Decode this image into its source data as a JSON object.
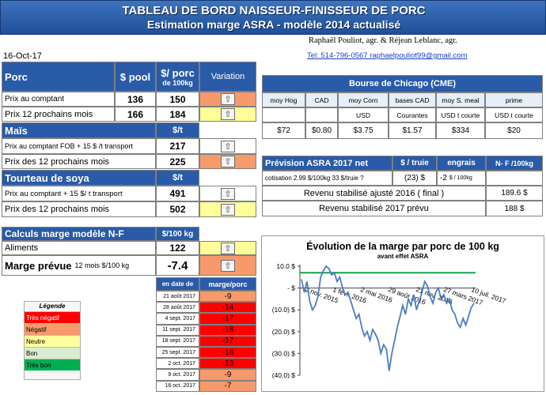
{
  "header": {
    "title_line1": "TABLEAU DE BORD NAISSEUR-FINISSEUR DE PORC",
    "title_line2": "Estimation marge ASRA - modèle 2014 actualisé"
  },
  "authors": "Raphaël Pouliot, agr.    &    Réjean Leblanc, agr.",
  "contact": "Tel:     514-796-0567   raphaelpouliot99@gmail.com",
  "date": "16-Oct-17",
  "porc": {
    "section": "Porc",
    "col_pool": "$ pool",
    "col_porc": "$/ porc",
    "col_porc_sub": "de 100kg",
    "col_variation": "Variation",
    "rows": [
      {
        "label": "Prix au comptant",
        "pool": "136",
        "porc": "150"
      },
      {
        "label": "Prix 12 prochains mois",
        "pool": "166",
        "porc": "184"
      }
    ]
  },
  "mais": {
    "section": "Maïs",
    "unit": "$/t",
    "rows": [
      {
        "label": "Prix au comptant FOB + 15 $ /t transport",
        "value": "217"
      },
      {
        "label": "Prix des 12 prochains mois",
        "value": "225"
      }
    ]
  },
  "soya": {
    "section": "Tourteau de soya",
    "unit": "$/t",
    "rows": [
      {
        "label": "Prix au comptant + 15 $/ t transport",
        "value": "491"
      },
      {
        "label": "Prix des 12 prochains mois",
        "value": "502"
      }
    ]
  },
  "marge": {
    "section": "Calculs marge  modèle N-F",
    "unit": "$/100 kg",
    "aliments_label": "Aliments",
    "aliments_value": "122",
    "prevue_label": "Marge prévue",
    "prevue_sub": "12 mois  $/100 kg",
    "prevue_value": "-7.4"
  },
  "history": {
    "col_date": "en date de",
    "col_marge": "marge/porc",
    "rows": [
      {
        "date": "21 août 2017",
        "value": "-9"
      },
      {
        "date": "28 août 2017",
        "value": "-14"
      },
      {
        "date": "4 sept. 2017",
        "value": "-17"
      },
      {
        "date": "11 sept. 2017",
        "value": "-18"
      },
      {
        "date": "18 sept. 2017",
        "value": "-17"
      },
      {
        "date": "25 sept. 2017",
        "value": "-18"
      },
      {
        "date": "2 oct. 2017",
        "value": "-13"
      },
      {
        "date": "9 oct. 2017",
        "value": "-9"
      },
      {
        "date": "16 oct. 2017",
        "value": "-7"
      }
    ]
  },
  "legend": {
    "title": "Légende",
    "items": [
      {
        "label": "Très négatif",
        "color": "#ff0000"
      },
      {
        "label": "Négatif",
        "color": "#f79a6b"
      },
      {
        "label": "Neutre",
        "color": "#ffff99"
      },
      {
        "label": "Bon",
        "color": "#d8ecd0"
      },
      {
        "label": "Très bon",
        "color": "#00b050"
      }
    ]
  },
  "cme": {
    "title": "Bourse de Chicago (CME)",
    "cols": [
      "moy Hog",
      "CAD",
      "moy Corn",
      "bases CAD",
      "moy S. meal",
      "prime"
    ],
    "units": [
      "",
      "",
      "USD",
      "Courantes",
      "USD t courte",
      "USD t courte"
    ],
    "values": [
      "$72",
      "$0.80",
      "$3.75",
      "$1.57",
      "$334",
      "$20"
    ]
  },
  "prevision": {
    "title": "Prévision ASRA 2017 net",
    "col_truie": "$ / truie",
    "col_engrais": "engrais",
    "col_nf": "N- F /100kg",
    "cotisation_label": "cotisation 2.99 $/100kg  33 $/truie ?",
    "truie_value": "(23) $",
    "engrais_value": "-2",
    "engrais_unit": "$ / 100kg",
    "revenu_2016_label": "Revenu stabilisé ajusté 2016 ( final )",
    "revenu_2016_value": "189.6 $",
    "revenu_2017_label": "Revenu stabilisé 2017 prévu",
    "revenu_2017_value": "188 $"
  },
  "chart_data": {
    "type": "line",
    "title": "Évolution de la marge par porc de 100 kg",
    "subtitle": "avant effet ASRA",
    "ylim": [
      -40,
      10
    ],
    "yticks": [
      "10.0 $",
      "-  $",
      "(10.0) $",
      "(20.0) $",
      "(30.0) $",
      "(40.0) $"
    ],
    "ytick_values": [
      10,
      0,
      -10,
      -20,
      -30,
      -40
    ],
    "xticks": [
      "2 nov. 2015",
      "1 févr. 2016",
      "2 mai 2016",
      "29 août 2016",
      "21 nov. 2016",
      "27 mars 2017",
      "10 juil. 2017"
    ],
    "reference_line": 7,
    "series": [
      {
        "values": [
          4,
          -2,
          3,
          -6,
          -10,
          -8,
          -4,
          5,
          8,
          10,
          9,
          6,
          7,
          3,
          5,
          0,
          -3,
          -2,
          -6,
          -10,
          -14,
          -12,
          -18,
          -22,
          -20,
          -24,
          -19,
          -21,
          -24,
          -30,
          -26,
          -28,
          -38,
          -30,
          -24,
          -18,
          -13,
          -8,
          -12,
          -5,
          -8,
          -3,
          -10,
          -6,
          -2,
          3,
          1,
          -4,
          -7,
          -2,
          0,
          -5,
          -3,
          -7,
          -5,
          -10,
          -12,
          -16,
          -18,
          -14,
          -17,
          -13,
          -9,
          -7
        ]
      }
    ]
  }
}
